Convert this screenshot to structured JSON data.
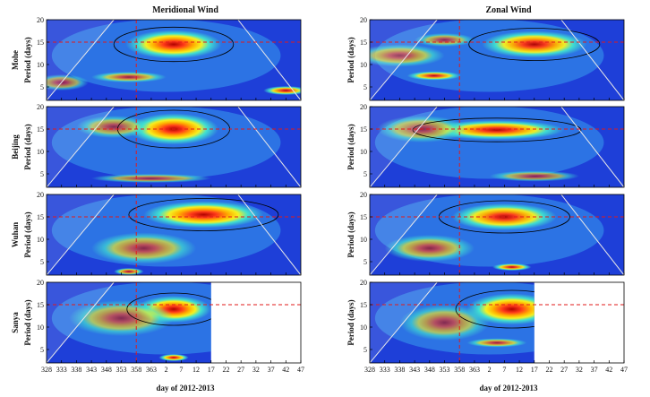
{
  "chart_data": {
    "type": "heatmap",
    "description_kind": "wavelet power spectra",
    "columns": [
      {
        "title": "Meridional Wind"
      },
      {
        "title": "Zonal Wind"
      }
    ],
    "stations": [
      "Mohe",
      "Beijing",
      "Wuhan",
      "Sanya"
    ],
    "xlabel": "day of 2012-2013",
    "ylabel": "Period (days)",
    "x_ticks": [
      "328",
      "333",
      "338",
      "343",
      "348",
      "353",
      "358",
      "363",
      "2",
      "7",
      "12",
      "17",
      "22",
      "27",
      "32",
      "37",
      "42",
      "47"
    ],
    "y_ticks": [
      "5",
      "10",
      "15",
      "20"
    ],
    "ylim": [
      2,
      20
    ],
    "reference_lines": {
      "period_days": 15,
      "day_index": 6,
      "style": "red dashed"
    },
    "data_ends_at_day_index_for_sanya": 11,
    "colors": {
      "low": "#1e3fd8",
      "mid": "#40e0d0",
      "high": "#ff3a1a",
      "peak": "#b00000"
    },
    "panels": [
      {
        "station": "Mohe",
        "component": "Meridional Wind",
        "blobs": [
          {
            "x": 8.5,
            "y": 14.5,
            "rx": 3.2,
            "ry": 3.2,
            "peak": 1.0
          },
          {
            "x": 5.5,
            "y": 7.2,
            "rx": 2.5,
            "ry": 1.2,
            "peak": 0.55
          },
          {
            "x": 16.0,
            "y": 4.2,
            "rx": 1.5,
            "ry": 1.0,
            "peak": 0.9
          },
          {
            "x": 1.0,
            "y": 6.0,
            "rx": 1.8,
            "ry": 1.8,
            "peak": 0.35
          }
        ]
      },
      {
        "station": "Mohe",
        "component": "Zonal Wind",
        "blobs": [
          {
            "x": 11.0,
            "y": 14.5,
            "rx": 3.5,
            "ry": 3.0,
            "peak": 0.95
          },
          {
            "x": 4.3,
            "y": 7.5,
            "rx": 1.8,
            "ry": 1.0,
            "peak": 0.85
          },
          {
            "x": 2.0,
            "y": 12.0,
            "rx": 3.0,
            "ry": 2.5,
            "peak": 0.45
          },
          {
            "x": 5.0,
            "y": 15.5,
            "rx": 2.0,
            "ry": 1.5,
            "peak": 0.4
          }
        ]
      },
      {
        "station": "Beijing",
        "component": "Meridional Wind",
        "blobs": [
          {
            "x": 8.5,
            "y": 15.0,
            "rx": 3.0,
            "ry": 3.5,
            "peak": 1.0
          },
          {
            "x": 4.5,
            "y": 15.5,
            "rx": 2.5,
            "ry": 2.5,
            "peak": 0.4
          },
          {
            "x": 7.0,
            "y": 4.0,
            "rx": 4.0,
            "ry": 1.0,
            "peak": 0.4
          }
        ]
      },
      {
        "station": "Beijing",
        "component": "Zonal Wind",
        "blobs": [
          {
            "x": 8.5,
            "y": 14.8,
            "rx": 4.5,
            "ry": 2.2,
            "peak": 0.95
          },
          {
            "x": 3.5,
            "y": 15.0,
            "rx": 3.0,
            "ry": 3.0,
            "peak": 0.4
          },
          {
            "x": 11.0,
            "y": 4.5,
            "rx": 3.0,
            "ry": 1.2,
            "peak": 0.35
          }
        ]
      },
      {
        "station": "Wuhan",
        "component": "Meridional Wind",
        "blobs": [
          {
            "x": 10.5,
            "y": 15.5,
            "rx": 4.0,
            "ry": 3.0,
            "peak": 1.0
          },
          {
            "x": 6.5,
            "y": 8.0,
            "rx": 3.5,
            "ry": 3.5,
            "peak": 0.45
          },
          {
            "x": 5.5,
            "y": 2.8,
            "rx": 1.0,
            "ry": 0.8,
            "peak": 0.7
          }
        ]
      },
      {
        "station": "Wuhan",
        "component": "Zonal Wind",
        "blobs": [
          {
            "x": 9.0,
            "y": 15.0,
            "rx": 3.5,
            "ry": 3.0,
            "peak": 0.95
          },
          {
            "x": 9.5,
            "y": 3.8,
            "rx": 1.3,
            "ry": 0.8,
            "peak": 0.9
          },
          {
            "x": 4.0,
            "y": 8.0,
            "rx": 3.0,
            "ry": 3.0,
            "peak": 0.45
          }
        ]
      },
      {
        "station": "Sanya",
        "component": "Meridional Wind",
        "blobs": [
          {
            "x": 8.5,
            "y": 14.0,
            "rx": 2.5,
            "ry": 3.0,
            "peak": 1.0
          },
          {
            "x": 8.5,
            "y": 3.2,
            "rx": 1.0,
            "ry": 0.8,
            "peak": 0.95
          },
          {
            "x": 5.0,
            "y": 12.0,
            "rx": 3.5,
            "ry": 4.0,
            "peak": 0.4
          }
        ]
      },
      {
        "station": "Sanya",
        "component": "Zonal Wind",
        "blobs": [
          {
            "x": 9.5,
            "y": 14.0,
            "rx": 3.0,
            "ry": 3.5,
            "peak": 1.0
          },
          {
            "x": 8.5,
            "y": 6.5,
            "rx": 2.0,
            "ry": 1.0,
            "peak": 0.6
          },
          {
            "x": 5.0,
            "y": 11.0,
            "rx": 3.0,
            "ry": 4.0,
            "peak": 0.4
          }
        ]
      }
    ]
  }
}
